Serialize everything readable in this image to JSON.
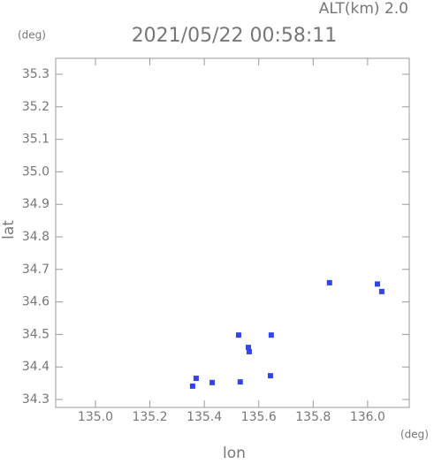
{
  "chart_data": {
    "type": "scatter",
    "title": "2021/05/22 00:58:11",
    "subtitle": "ALT(km)  2.0",
    "x_label": "lon",
    "y_label": "lat",
    "x_unit": "(deg)",
    "y_unit": "(deg)",
    "color": "#3344ee",
    "x": [
      135.357,
      135.37,
      135.429,
      135.532,
      135.562,
      135.565,
      135.646,
      135.643,
      135.526,
      136.036,
      136.052,
      135.86
    ],
    "y": [
      34.341,
      34.365,
      34.352,
      34.354,
      34.46,
      34.447,
      34.498,
      34.373,
      34.498,
      34.655,
      34.632,
      34.659
    ],
    "xlim": [
      134.854,
      136.153
    ],
    "ylim": [
      34.2755,
      35.349
    ],
    "xticks": [
      {
        "value": 135,
        "label": "135.0"
      },
      135.2,
      135.4,
      135.6,
      135.8,
      {
        "value": 136,
        "label": "136.0"
      }
    ],
    "yticks": [
      34.3,
      34.4,
      34.5,
      34.6,
      34.7,
      34.8,
      34.9,
      {
        "value": 35,
        "label": "35.0"
      },
      35.1,
      35.2,
      35.3
    ]
  }
}
